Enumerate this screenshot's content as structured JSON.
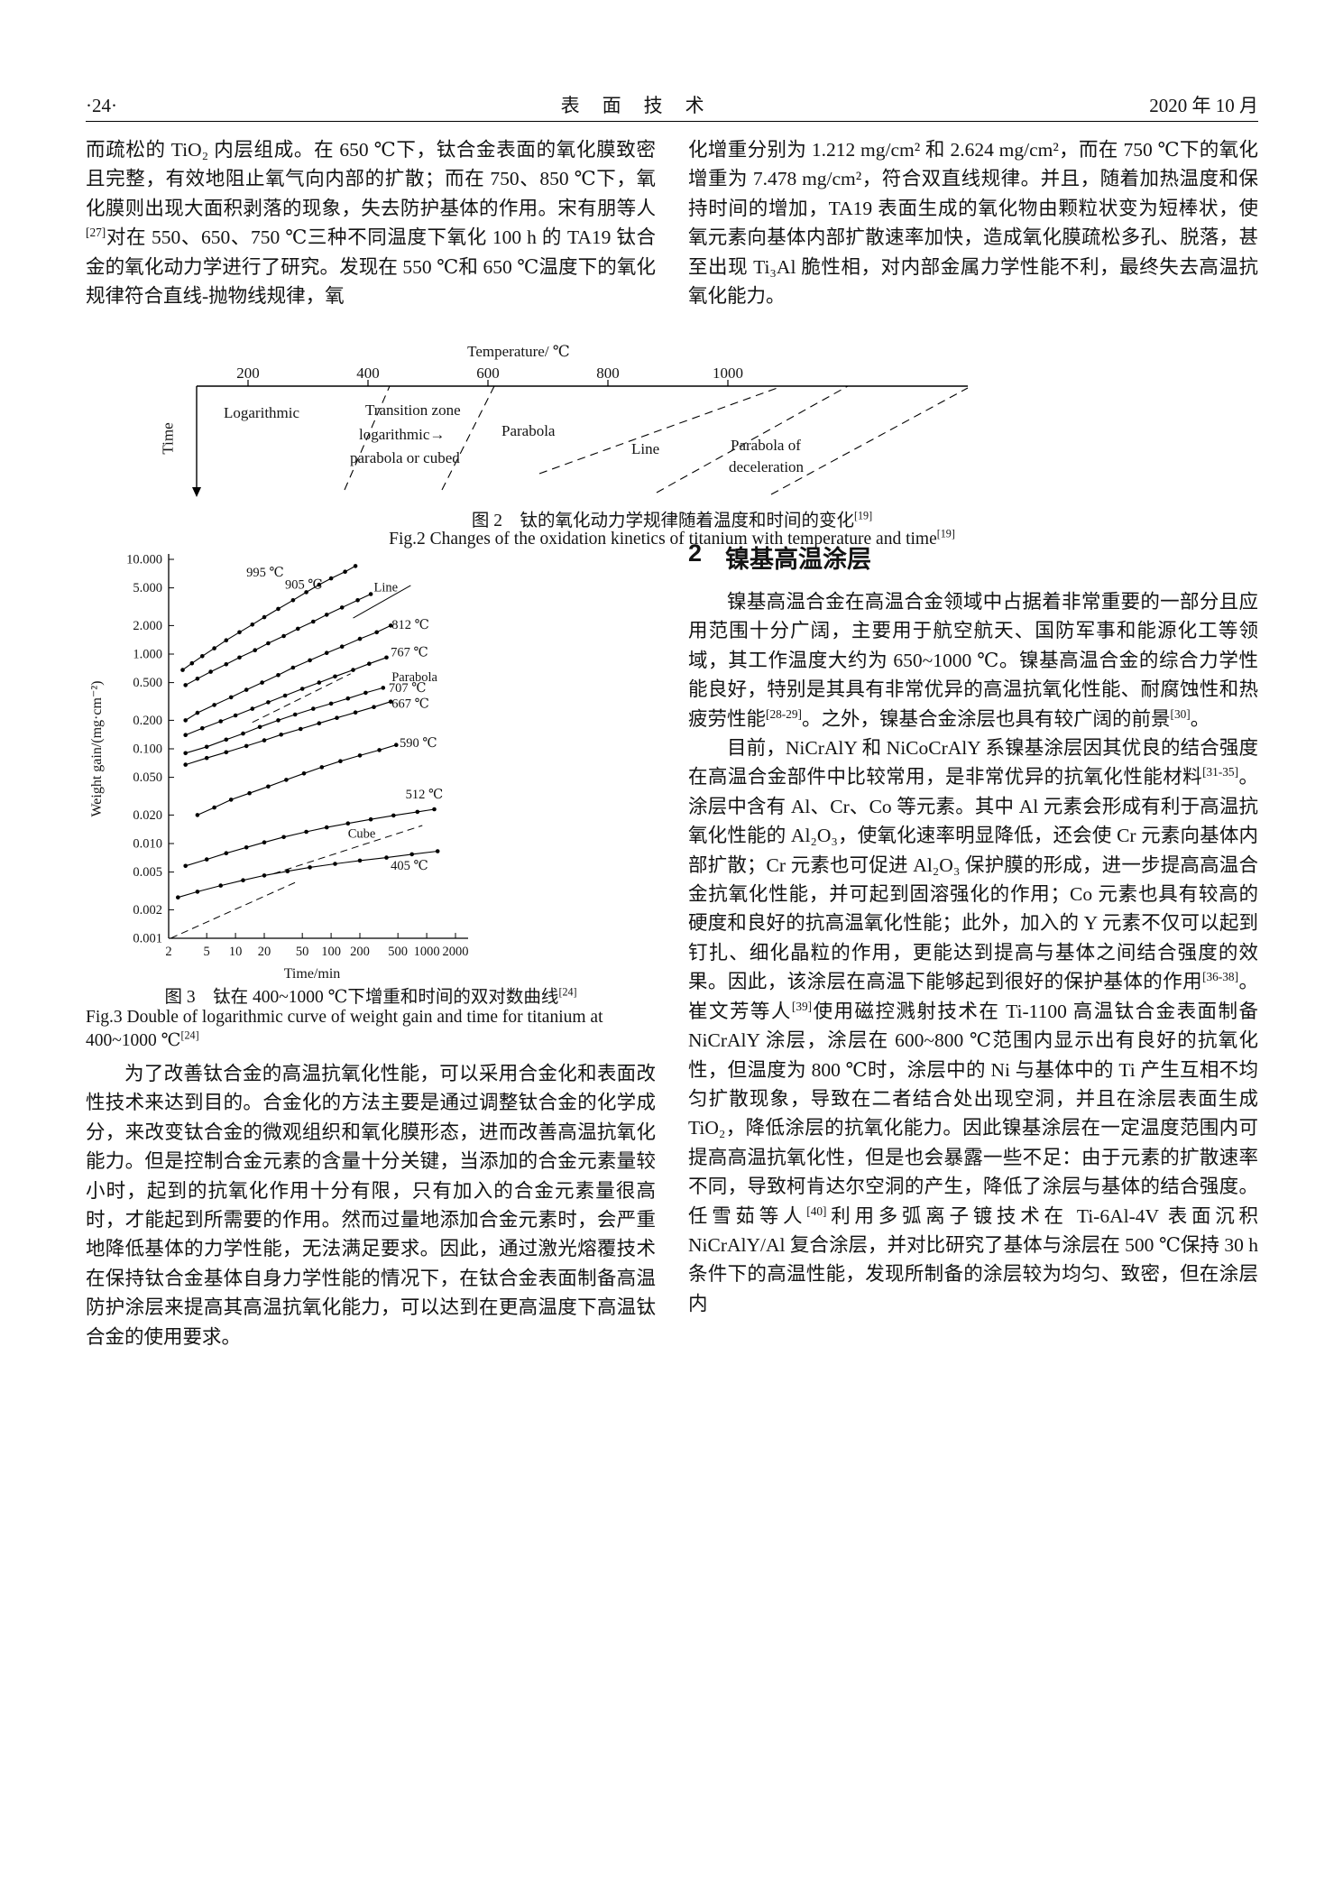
{
  "header": {
    "page_number": "·24·",
    "journal_title": "表　面　技　术",
    "issue_date": "2020 年 10 月"
  },
  "body": {
    "left_top": "而疏松的 TiO₂ 内层组成。在 650 ℃下，钛合金表面的氧化膜致密且完整，有效地阻止氧气向内部的扩散；而在 750、850 ℃下，氧化膜则出现大面积剥落的现象，失去防护基体的作用。宋有朋等人[27]对在 550、650、750 ℃三种不同温度下氧化 100 h 的 TA19 钛合金的氧化动力学进行了研究。发现在 550 ℃和 650 ℃温度下的氧化规律符合直线-抛物线规律，氧",
    "right_top": "化增重分别为 1.212 mg/cm² 和 2.624 mg/cm²，而在 750 ℃下的氧化增重为 7.478 mg/cm²，符合双直线规律。并且，随着加热温度和保持时间的增加，TA19 表面生成的氧化物由颗粒状变为短棒状，使氧元素向基体内部扩散速率加快，造成氧化膜疏松多孔、脱落，甚至出现 Ti₃Al 脆性相，对内部金属力学性能不利，最终失去高温抗氧化能力。",
    "left_bottom": "为了改善钛合金的高温抗氧化性能，可以采用合金化和表面改性技术来达到目的。合金化的方法主要是通过调整钛合金的化学成分，来改变钛合金的微观组织和氧化膜形态，进而改善高温抗氧化能力。但是控制合金元素的含量十分关键，当添加的合金元素量较小时，起到的抗氧化作用十分有限，只有加入的合金元素量很高时，才能起到所需要的作用。然而过量地添加合金元素时，会严重地降低基体的力学性能，无法满足要求。因此，通过激光熔覆技术在保持钛合金基体自身力学性能的情况下，在钛合金表面制备高温防护涂层来提高其高温抗氧化能力，可以达到在更高温度下高温钛合金的使用要求。"
  },
  "figure2": {
    "temp_axis_label": "Temperature/ ℃",
    "ticks": [
      "200",
      "400",
      "600",
      "800",
      "1000"
    ],
    "time_axis_label": "Time",
    "labels": {
      "logarithmic": "Logarithmic",
      "transition_1": "Transition zone",
      "transition_2": "logarithmic→",
      "transition_3": "parabola or cubed",
      "parabola": "Parabola",
      "line": "Line",
      "parabola_decel_1": "Parabola of",
      "parabola_decel_2": "deceleration"
    },
    "caption_zh": "图 2　钛的氧化动力学规律随着温度和时间的变化[19]",
    "caption_en": "Fig.2 Changes of the oxidation kinetics of titanium with temperature and time[19]"
  },
  "figure3": {
    "caption_zh": "图 3　钛在 400~1000 ℃下增重和时间的双对数曲线[24]",
    "caption_en": "Fig.3 Double of logarithmic curve of weight gain and time for titanium at 400~1000 ℃[24]"
  },
  "section2": {
    "number": "2",
    "title": "镍基高温涂层",
    "p1": "镍基高温合金在高温合金领域中占据着非常重要的一部分且应用范围十分广阔，主要用于航空航天、国防军事和能源化工等领域，其工作温度大约为 650~1000 ℃。镍基高温合金的综合力学性能良好，特别是其具有非常优异的高温抗氧化性能、耐腐蚀性和热疲劳性能[28-29]。之外，镍基合金涂层也具有较广阔的前景[30]。",
    "p2": "目前，NiCrAlY 和 NiCoCrAlY 系镍基涂层因其优良的结合强度在高温合金部件中比较常用，是非常优异的抗氧化性能材料[31-35]。涂层中含有 Al、Cr、Co 等元素。其中 Al 元素会形成有利于高温抗氧化性能的 Al₂O₃，使氧化速率明显降低，还会使 Cr 元素向基体内部扩散；Cr 元素也可促进 Al₂O₃ 保护膜的形成，进一步提高高温合金抗氧化性能，并可起到固溶强化的作用；Co 元素也具有较高的硬度和良好的抗高温氧化性能；此外，加入的 Y 元素不仅可以起到钉扎、细化晶粒的作用，更能达到提高与基体之间结合强度的效果。因此，该涂层在高温下能够起到很好的保护基体的作用[36-38]。崔文芳等人[39]使用磁控溅射技术在 Ti-1100 高温钛合金表面制备 NiCrAlY 涂层，涂层在 600~800 ℃范围内显示出有良好的抗氧化性，但温度为 800 ℃时，涂层中的 Ni 与基体中的 Ti 产生互相不均匀扩散现象，导致在二者结合处出现空洞，并且在涂层表面生成 TiO₂，降低涂层的抗氧化能力。因此镍基涂层在一定温度范围内可提高高温抗氧化性，但是也会暴露一些不足：由于元素的扩散速率不同，导致柯肯达尔空洞的产生，降低了涂层与基体的结合强度。任雪茹等人[40]利用多弧离子镀技术在 Ti-6Al-4V 表面沉积 NiCrAlY/Al 复合涂层，并对比研究了基体与涂层在 500 ℃保持 30 h 条件下的高温性能，发现所制备的涂层较为均匀、致密，但在涂层内"
  },
  "chart_data": {
    "type": "scatter",
    "title": "",
    "xlabel": "Time/min",
    "ylabel": "Weight gain/(mg·cm⁻²)",
    "xscale": "log",
    "yscale": "log",
    "xlim": [
      2,
      2000
    ],
    "ylim": [
      0.001,
      10
    ],
    "grid": false,
    "xticks": [
      {
        "v": 2,
        "label": "2"
      },
      {
        "v": 5,
        "label": "5"
      },
      {
        "v": 10,
        "label": "10"
      },
      {
        "v": 20,
        "label": "20"
      },
      {
        "v": 50,
        "label": "50"
      },
      {
        "v": 100,
        "label": "100"
      },
      {
        "v": 200,
        "label": "200"
      },
      {
        "v": 500,
        "label": "500"
      },
      {
        "v": 1000,
        "label": "1000"
      },
      {
        "v": 2000,
        "label": "2000"
      }
    ],
    "yticks": [
      {
        "v": 10,
        "label": "10.000"
      },
      {
        "v": 5,
        "label": "5.000"
      },
      {
        "v": 2,
        "label": "2.000"
      },
      {
        "v": 1,
        "label": "1.000"
      },
      {
        "v": 0.5,
        "label": "0.500"
      },
      {
        "v": 0.2,
        "label": "0.200"
      },
      {
        "v": 0.1,
        "label": "0.100"
      },
      {
        "v": 0.05,
        "label": "0.050"
      },
      {
        "v": 0.02,
        "label": "0.020"
      },
      {
        "v": 0.01,
        "label": "0.010"
      },
      {
        "v": 0.005,
        "label": "0.005"
      },
      {
        "v": 0.002,
        "label": "0.002"
      },
      {
        "v": 0.001,
        "label": "0.001"
      }
    ],
    "series": [
      {
        "name": "995 ℃",
        "points": [
          [
            2.8,
            0.68
          ],
          [
            3.5,
            0.8
          ],
          [
            4.5,
            0.95
          ],
          [
            6,
            1.15
          ],
          [
            8,
            1.4
          ],
          [
            11,
            1.7
          ],
          [
            15,
            2.05
          ],
          [
            20,
            2.45
          ],
          [
            28,
            3.0
          ],
          [
            40,
            3.7
          ],
          [
            55,
            4.5
          ],
          [
            75,
            5.4
          ],
          [
            100,
            6.3
          ],
          [
            140,
            7.4
          ],
          [
            180,
            8.5
          ]
        ]
      },
      {
        "name": "905 ℃",
        "points": [
          [
            3,
            0.47
          ],
          [
            4,
            0.55
          ],
          [
            5.5,
            0.65
          ],
          [
            8,
            0.78
          ],
          [
            11,
            0.92
          ],
          [
            16,
            1.1
          ],
          [
            22,
            1.3
          ],
          [
            32,
            1.55
          ],
          [
            45,
            1.85
          ],
          [
            65,
            2.2
          ],
          [
            90,
            2.6
          ],
          [
            130,
            3.1
          ],
          [
            190,
            3.7
          ],
          [
            260,
            4.3
          ]
        ]
      },
      {
        "name": "812 ℃",
        "points": [
          [
            3,
            0.2
          ],
          [
            4,
            0.24
          ],
          [
            6,
            0.29
          ],
          [
            9,
            0.35
          ],
          [
            13,
            0.42
          ],
          [
            19,
            0.5
          ],
          [
            28,
            0.6
          ],
          [
            40,
            0.72
          ],
          [
            60,
            0.86
          ],
          [
            90,
            1.03
          ],
          [
            130,
            1.2
          ],
          [
            200,
            1.45
          ],
          [
            300,
            1.7
          ],
          [
            420,
            2.0
          ]
        ]
      },
      {
        "name": "767 ℃",
        "points": [
          [
            3,
            0.14
          ],
          [
            4.5,
            0.165
          ],
          [
            7,
            0.195
          ],
          [
            10,
            0.225
          ],
          [
            15,
            0.265
          ],
          [
            22,
            0.31
          ],
          [
            33,
            0.365
          ],
          [
            50,
            0.43
          ],
          [
            75,
            0.5
          ],
          [
            110,
            0.58
          ],
          [
            170,
            0.68
          ],
          [
            250,
            0.79
          ],
          [
            380,
            0.92
          ]
        ]
      },
      {
        "name": "707 ℃",
        "points": [
          [
            3,
            0.09
          ],
          [
            5,
            0.105
          ],
          [
            8,
            0.125
          ],
          [
            12,
            0.145
          ],
          [
            18,
            0.17
          ],
          [
            28,
            0.2
          ],
          [
            42,
            0.23
          ],
          [
            65,
            0.265
          ],
          [
            100,
            0.3
          ],
          [
            150,
            0.34
          ],
          [
            230,
            0.39
          ],
          [
            350,
            0.44
          ]
        ]
      },
      {
        "name": "667 ℃",
        "points": [
          [
            3,
            0.068
          ],
          [
            5,
            0.08
          ],
          [
            8,
            0.092
          ],
          [
            13,
            0.107
          ],
          [
            20,
            0.123
          ],
          [
            30,
            0.141
          ],
          [
            48,
            0.162
          ],
          [
            75,
            0.186
          ],
          [
            115,
            0.212
          ],
          [
            180,
            0.242
          ],
          [
            280,
            0.276
          ],
          [
            420,
            0.315
          ]
        ]
      },
      {
        "name": "590 ℃",
        "points": [
          [
            4,
            0.02
          ],
          [
            6,
            0.024
          ],
          [
            9,
            0.029
          ],
          [
            14,
            0.034
          ],
          [
            22,
            0.04
          ],
          [
            34,
            0.047
          ],
          [
            52,
            0.055
          ],
          [
            80,
            0.064
          ],
          [
            125,
            0.074
          ],
          [
            200,
            0.085
          ],
          [
            320,
            0.097
          ],
          [
            480,
            0.11
          ]
        ]
      },
      {
        "name": "512 ℃",
        "points": [
          [
            3,
            0.0058
          ],
          [
            5,
            0.0068
          ],
          [
            8,
            0.0079
          ],
          [
            13,
            0.0091
          ],
          [
            20,
            0.0103
          ],
          [
            32,
            0.0117
          ],
          [
            55,
            0.0133
          ],
          [
            90,
            0.0148
          ],
          [
            150,
            0.0163
          ],
          [
            260,
            0.018
          ],
          [
            450,
            0.0198
          ],
          [
            800,
            0.0216
          ],
          [
            1200,
            0.023
          ]
        ]
      },
      {
        "name": "405 ℃",
        "points": [
          [
            2.5,
            0.0027
          ],
          [
            4,
            0.0031
          ],
          [
            7,
            0.0036
          ],
          [
            12,
            0.0041
          ],
          [
            20,
            0.0046
          ],
          [
            35,
            0.0051
          ],
          [
            60,
            0.0056
          ],
          [
            110,
            0.0061
          ],
          [
            200,
            0.0066
          ],
          [
            380,
            0.0071
          ],
          [
            700,
            0.0077
          ],
          [
            1300,
            0.0083
          ]
        ]
      }
    ],
    "ref_lines": [
      {
        "name": "line",
        "from": [
          170,
          2.4
        ],
        "to": [
          680,
          5.3
        ],
        "dashed": false
      },
      {
        "name": "parabola",
        "from": [
          15,
          0.19
        ],
        "to": [
          160,
          0.62
        ],
        "dashed": true
      },
      {
        "name": "cube",
        "from": [
          25,
          0.0048
        ],
        "to": [
          900,
          0.0155
        ],
        "dashed": true
      },
      {
        "name": "lower-left-guide",
        "from": [
          2.1,
          0.001
        ],
        "to": [
          45,
          0.004
        ],
        "dashed": true
      }
    ],
    "labels": [
      {
        "text": "995 ℃",
        "at": [
          13,
          6.6
        ],
        "anchor": "start"
      },
      {
        "text": "905 ℃",
        "at": [
          33,
          4.9
        ],
        "anchor": "start"
      },
      {
        "text": "Line",
        "at": [
          280,
          4.6
        ],
        "anchor": "start"
      },
      {
        "text": "812 ℃",
        "at": [
          430,
          1.85
        ],
        "anchor": "start"
      },
      {
        "text": "767 ℃",
        "at": [
          420,
          0.95
        ],
        "anchor": "start"
      },
      {
        "text": "Parabola",
        "at": [
          430,
          0.52
        ],
        "anchor": "start"
      },
      {
        "text": "707 ℃",
        "at": [
          400,
          0.4
        ],
        "anchor": "start"
      },
      {
        "text": "667 ℃",
        "at": [
          430,
          0.27
        ],
        "anchor": "start"
      },
      {
        "text": "590 ℃",
        "at": [
          520,
          0.105
        ],
        "anchor": "start"
      },
      {
        "text": "512 ℃",
        "at": [
          600,
          0.03
        ],
        "anchor": "start"
      },
      {
        "text": "Cube",
        "at": [
          150,
          0.0115
        ],
        "anchor": "start"
      },
      {
        "text": "405 ℃",
        "at": [
          420,
          0.0053
        ],
        "anchor": "start"
      }
    ]
  }
}
